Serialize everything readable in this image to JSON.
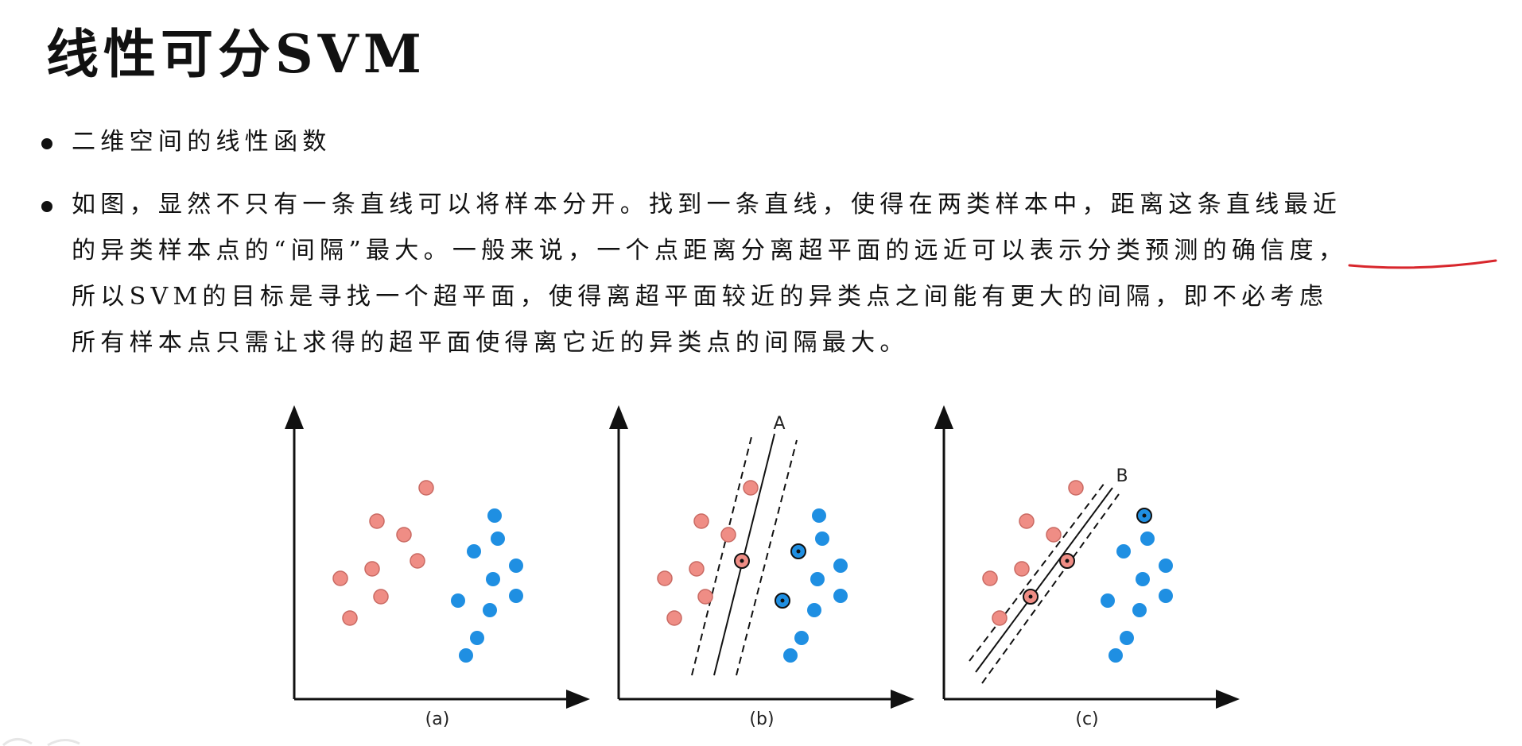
{
  "title": "线性可分SVM",
  "bullets": [
    {
      "lines": [
        "二维空间的线性函数"
      ]
    },
    {
      "lines": [
        "如图，显然不只有一条直线可以将样本分开。找到一条直线，使得在两类样本中，距离这条直线最近",
        "的异类样本点的“间隔”最大。一般来说，一个点距离分离超平面的远近可以表示分类预测的确信度，",
        "所以SVM的目标是寻找一个超平面，使得离超平面较近的异类点之间能有更大的间隔，即不必考虑",
        "所有样本点只需让求得的超平面使得离它近的异类点的间隔最大。"
      ]
    }
  ],
  "figures": {
    "a": {
      "caption": "(a)"
    },
    "b": {
      "caption": "(b)",
      "line_label": "A"
    },
    "c": {
      "caption": "(c)",
      "line_label": "B"
    }
  },
  "colors": {
    "red_class": "#ef8d85",
    "blue_class": "#1f8fe2",
    "annotation_red": "#d8262c",
    "text": "#111111"
  }
}
